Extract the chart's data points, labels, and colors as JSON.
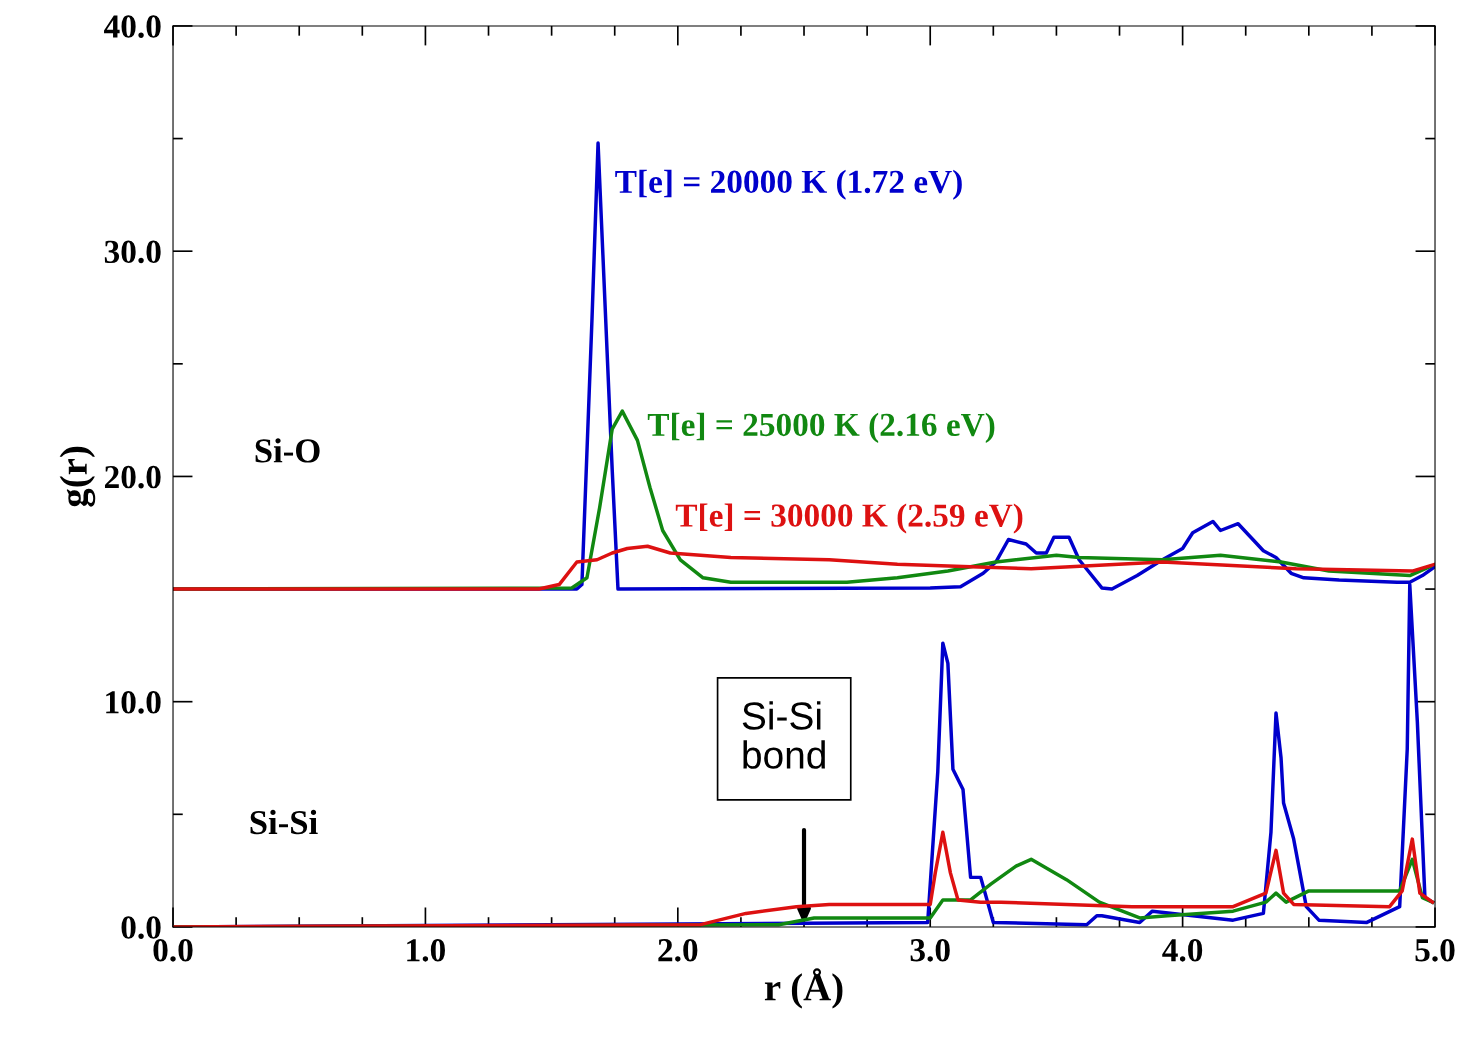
{
  "chart_data": {
    "type": "line",
    "xlabel": "r (Å)",
    "ylabel": "g(r)",
    "xlim": [
      0,
      5
    ],
    "ylim": [
      0,
      40
    ],
    "xticks": [
      {
        "value": 0,
        "label": "0.0"
      },
      {
        "value": 0.25,
        "label": null
      },
      {
        "value": 0.5,
        "label": null
      },
      {
        "value": 0.75,
        "label": null
      },
      {
        "value": 1,
        "label": "1.0"
      },
      {
        "value": 1.25,
        "label": null
      },
      {
        "value": 1.5,
        "label": null
      },
      {
        "value": 1.75,
        "label": null
      },
      {
        "value": 2,
        "label": "2.0"
      },
      {
        "value": 2.25,
        "label": null
      },
      {
        "value": 2.5,
        "label": null
      },
      {
        "value": 2.75,
        "label": null
      },
      {
        "value": 3,
        "label": "3.0"
      },
      {
        "value": 3.25,
        "label": null
      },
      {
        "value": 3.5,
        "label": null
      },
      {
        "value": 3.75,
        "label": null
      },
      {
        "value": 4,
        "label": "4.0"
      },
      {
        "value": 4.25,
        "label": null
      },
      {
        "value": 4.5,
        "label": null
      },
      {
        "value": 4.75,
        "label": null
      },
      {
        "value": 5,
        "label": "5.0"
      }
    ],
    "yticks": [
      {
        "value": 0,
        "label": "0.0"
      },
      {
        "value": 5,
        "label": null
      },
      {
        "value": 10,
        "label": "10.0"
      },
      {
        "value": 15,
        "label": null
      },
      {
        "value": 20,
        "label": "20.0"
      },
      {
        "value": 25,
        "label": null
      },
      {
        "value": 30,
        "label": "30.0"
      },
      {
        "value": 35,
        "label": null
      },
      {
        "value": 40,
        "label": "40.0"
      }
    ],
    "grid": false,
    "legend": false,
    "marker": "none",
    "line_style": "solid",
    "series": [
      {
        "name": "T[e] = 20000 K (1.72 eV)",
        "color": "#0000cc",
        "x": [
          0,
          1.6,
          1.62,
          1.66,
          1.684,
          1.74,
          1.763,
          3.0,
          3.12,
          3.21,
          3.26,
          3.31,
          3.38,
          3.42,
          3.46,
          3.49,
          3.55,
          3.59,
          3.68,
          3.72,
          3.82,
          3.92,
          4.0,
          4.04,
          4.12,
          4.15,
          4.22,
          4.27,
          4.32,
          4.37,
          4.43,
          4.48,
          4.62,
          4.85,
          4.9,
          4.95,
          5.0
        ],
        "values": [
          15,
          15,
          15.2,
          27,
          34.8,
          20.3,
          15.0,
          15.05,
          15.1,
          15.7,
          16.2,
          17.2,
          17.0,
          16.6,
          16.6,
          17.3,
          17.3,
          16.3,
          15.05,
          15.0,
          15.6,
          16.3,
          16.8,
          17.5,
          18.0,
          17.6,
          17.9,
          17.3,
          16.7,
          16.4,
          15.7,
          15.5,
          15.4,
          15.3,
          15.3,
          15.6,
          16.0
        ]
      },
      {
        "name": "T[e] = 25000 K (2.16 eV)",
        "color": "#118811",
        "x": [
          0,
          1.58,
          1.64,
          1.69,
          1.74,
          1.78,
          1.84,
          1.89,
          1.94,
          2.01,
          2.1,
          2.21,
          2.67,
          2.87,
          3.07,
          3.26,
          3.5,
          3.59,
          3.92,
          4.15,
          4.39,
          4.58,
          4.9,
          4.98
        ],
        "values": [
          15,
          15.05,
          15.5,
          18.6,
          22.1,
          22.9,
          21.6,
          19.5,
          17.6,
          16.3,
          15.5,
          15.3,
          15.3,
          15.5,
          15.8,
          16.2,
          16.5,
          16.4,
          16.3,
          16.5,
          16.2,
          15.8,
          15.6,
          16.0
        ]
      },
      {
        "name": "T[e] = 30000 K (2.59 eV)",
        "color": "#dd1111",
        "x": [
          0,
          1.45,
          1.53,
          1.6,
          1.68,
          1.74,
          1.8,
          1.88,
          1.97,
          2.21,
          2.6,
          2.87,
          3.13,
          3.4,
          3.92,
          4.45,
          4.91,
          5.0
        ],
        "values": [
          15,
          15,
          15.2,
          16.2,
          16.3,
          16.6,
          16.8,
          16.9,
          16.6,
          16.4,
          16.3,
          16.1,
          16.0,
          15.9,
          16.2,
          15.9,
          15.8,
          16.1
        ]
      },
      {
        "color": "#0000cc",
        "x": [
          0,
          2.99,
          3.03,
          3.05,
          3.07,
          3.09,
          3.13,
          3.16,
          3.2,
          3.25,
          3.62,
          3.66,
          3.68,
          3.83,
          3.88,
          4.2,
          4.32,
          4.35,
          4.37,
          4.39,
          4.4,
          4.44,
          4.49,
          4.54,
          4.73,
          4.86,
          4.89,
          4.9,
          4.93,
          4.96,
          4.99
        ],
        "values": [
          0,
          0.2,
          6.9,
          12.6,
          11.7,
          7.0,
          6.1,
          2.2,
          2.2,
          0.2,
          0.1,
          0.5,
          0.5,
          0.2,
          0.7,
          0.3,
          0.6,
          4.2,
          9.5,
          7.5,
          5.5,
          3.9,
          0.9,
          0.3,
          0.2,
          0.9,
          7.9,
          15.2,
          9.1,
          1.3,
          1.1
        ]
      },
      {
        "color": "#118811",
        "x": [
          0,
          2.4,
          2.54,
          2.73,
          3.0,
          3.05,
          3.16,
          3.24,
          3.34,
          3.4,
          3.54,
          3.67,
          3.83,
          3.94,
          4.2,
          4.33,
          4.37,
          4.41,
          4.5,
          4.6,
          4.86,
          4.91,
          4.95,
          4.99
        ],
        "values": [
          0,
          0.1,
          0.4,
          0.4,
          0.4,
          1.2,
          1.2,
          1.9,
          2.7,
          3.0,
          2.1,
          1.1,
          0.4,
          0.5,
          0.7,
          1.1,
          1.5,
          1.1,
          1.6,
          1.6,
          1.6,
          3.0,
          1.3,
          1.1
        ]
      },
      {
        "color": "#dd1111",
        "x": [
          0,
          2.09,
          2.27,
          2.47,
          2.6,
          2.8,
          3.0,
          3.02,
          3.05,
          3.08,
          3.11,
          3.2,
          3.28,
          3.8,
          4.2,
          4.33,
          4.37,
          4.4,
          4.44,
          4.82,
          4.87,
          4.91,
          4.94,
          4.99
        ],
        "values": [
          0,
          0.1,
          0.6,
          0.9,
          1.0,
          1.0,
          1.0,
          2.4,
          4.2,
          2.4,
          1.2,
          1.1,
          1.1,
          0.9,
          0.9,
          1.5,
          3.4,
          1.5,
          1.0,
          0.9,
          1.6,
          3.9,
          1.5,
          1.1
        ]
      }
    ],
    "annotations": [
      "Si-O",
      "Si-Si",
      "Si-Si\nbond"
    ]
  }
}
